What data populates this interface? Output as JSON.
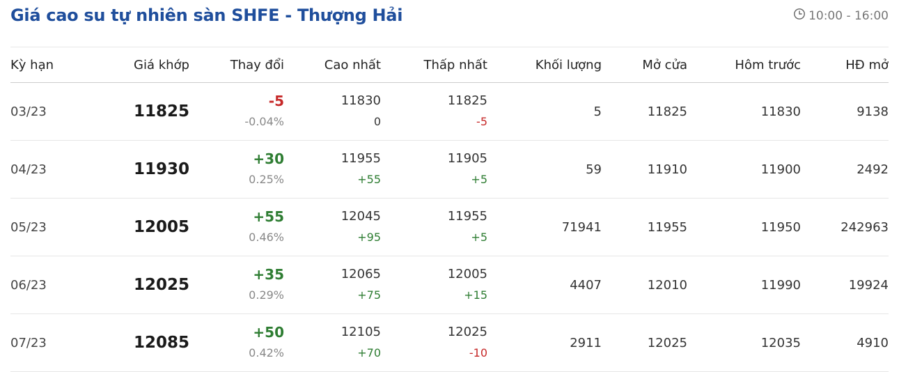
{
  "title": "Giá cao su tự nhiên sàn SHFE - Thượng Hải",
  "trading_hours": "10:00 - 16:00",
  "icons": {
    "clock": "clock-icon"
  },
  "colors": {
    "title": "#1f4e9c",
    "up": "#2e7d32",
    "down": "#c62828"
  },
  "columns": [
    "Kỳ hạn",
    "Giá khớp",
    "Thay đổi",
    "Cao nhất",
    "Thấp nhất",
    "Khối lượng",
    "Mở cửa",
    "Hôm trước",
    "HĐ mở"
  ],
  "rows": [
    {
      "term": "03/23",
      "price": "11825",
      "change": "-5",
      "change_pct": "-0.04%",
      "dir": "down",
      "high": "11830",
      "high_chg": "0",
      "high_dir": "neu",
      "low": "11825",
      "low_chg": "-5",
      "low_dir": "down",
      "volume": "5",
      "open": "11825",
      "prev": "11830",
      "oi": "9138"
    },
    {
      "term": "04/23",
      "price": "11930",
      "change": "+30",
      "change_pct": "0.25%",
      "dir": "up",
      "high": "11955",
      "high_chg": "+55",
      "high_dir": "up",
      "low": "11905",
      "low_chg": "+5",
      "low_dir": "up",
      "volume": "59",
      "open": "11910",
      "prev": "11900",
      "oi": "2492"
    },
    {
      "term": "05/23",
      "price": "12005",
      "change": "+55",
      "change_pct": "0.46%",
      "dir": "up",
      "high": "12045",
      "high_chg": "+95",
      "high_dir": "up",
      "low": "11955",
      "low_chg": "+5",
      "low_dir": "up",
      "volume": "71941",
      "open": "11955",
      "prev": "11950",
      "oi": "242963"
    },
    {
      "term": "06/23",
      "price": "12025",
      "change": "+35",
      "change_pct": "0.29%",
      "dir": "up",
      "high": "12065",
      "high_chg": "+75",
      "high_dir": "up",
      "low": "12005",
      "low_chg": "+15",
      "low_dir": "up",
      "volume": "4407",
      "open": "12010",
      "prev": "11990",
      "oi": "19924"
    },
    {
      "term": "07/23",
      "price": "12085",
      "change": "+50",
      "change_pct": "0.42%",
      "dir": "up",
      "high": "12105",
      "high_chg": "+70",
      "high_dir": "up",
      "low": "12025",
      "low_chg": "-10",
      "low_dir": "down",
      "volume": "2911",
      "open": "12025",
      "prev": "12035",
      "oi": "4910"
    }
  ]
}
